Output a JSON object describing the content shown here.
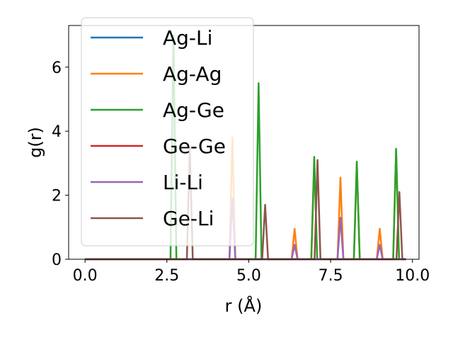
{
  "chart_data": {
    "type": "line",
    "xlabel": "r (Å)",
    "ylabel": "g(r)",
    "xlim": [
      -0.5,
      10.2
    ],
    "ylim": [
      0,
      7.3
    ],
    "xticks": [
      0.0,
      2.5,
      5.0,
      7.5,
      10.0
    ],
    "xtick_labels": [
      "0.0",
      "2.5",
      "5.0",
      "7.5",
      "10.0"
    ],
    "yticks": [
      0,
      2,
      4,
      6
    ],
    "ytick_labels": [
      "0",
      "2",
      "4",
      "6"
    ],
    "grid": false,
    "legend_position": "top-left",
    "x_range": [
      0.0,
      9.8
    ],
    "series": [
      {
        "name": "Ag-Li",
        "color": "#1f77b4",
        "peaks": []
      },
      {
        "name": "Ag-Ag",
        "color": "#ff7f0e",
        "peaks": [
          [
            4.5,
            3.8
          ],
          [
            6.4,
            0.95
          ],
          [
            7.0,
            3.1
          ],
          [
            7.8,
            2.55
          ],
          [
            8.3,
            3.0
          ],
          [
            9.0,
            0.95
          ],
          [
            9.5,
            3.4
          ]
        ]
      },
      {
        "name": "Ag-Ge",
        "color": "#2ca02c",
        "peaks": [
          [
            2.7,
            7.0
          ],
          [
            5.3,
            5.5
          ],
          [
            7.0,
            3.2
          ],
          [
            8.3,
            3.05
          ],
          [
            9.5,
            3.45
          ]
        ]
      },
      {
        "name": "Ge-Ge",
        "color": "#d62728",
        "peaks": []
      },
      {
        "name": "Li-Li",
        "color": "#9467bd",
        "peaks": [
          [
            4.5,
            1.9
          ],
          [
            6.4,
            0.45
          ],
          [
            7.8,
            1.3
          ],
          [
            9.0,
            0.45
          ]
        ]
      },
      {
        "name": "Ge-Li",
        "color": "#8c564b",
        "peaks": [
          [
            3.2,
            3.5
          ],
          [
            5.5,
            1.7
          ],
          [
            7.1,
            3.1
          ],
          [
            9.6,
            2.1
          ]
        ]
      }
    ]
  }
}
